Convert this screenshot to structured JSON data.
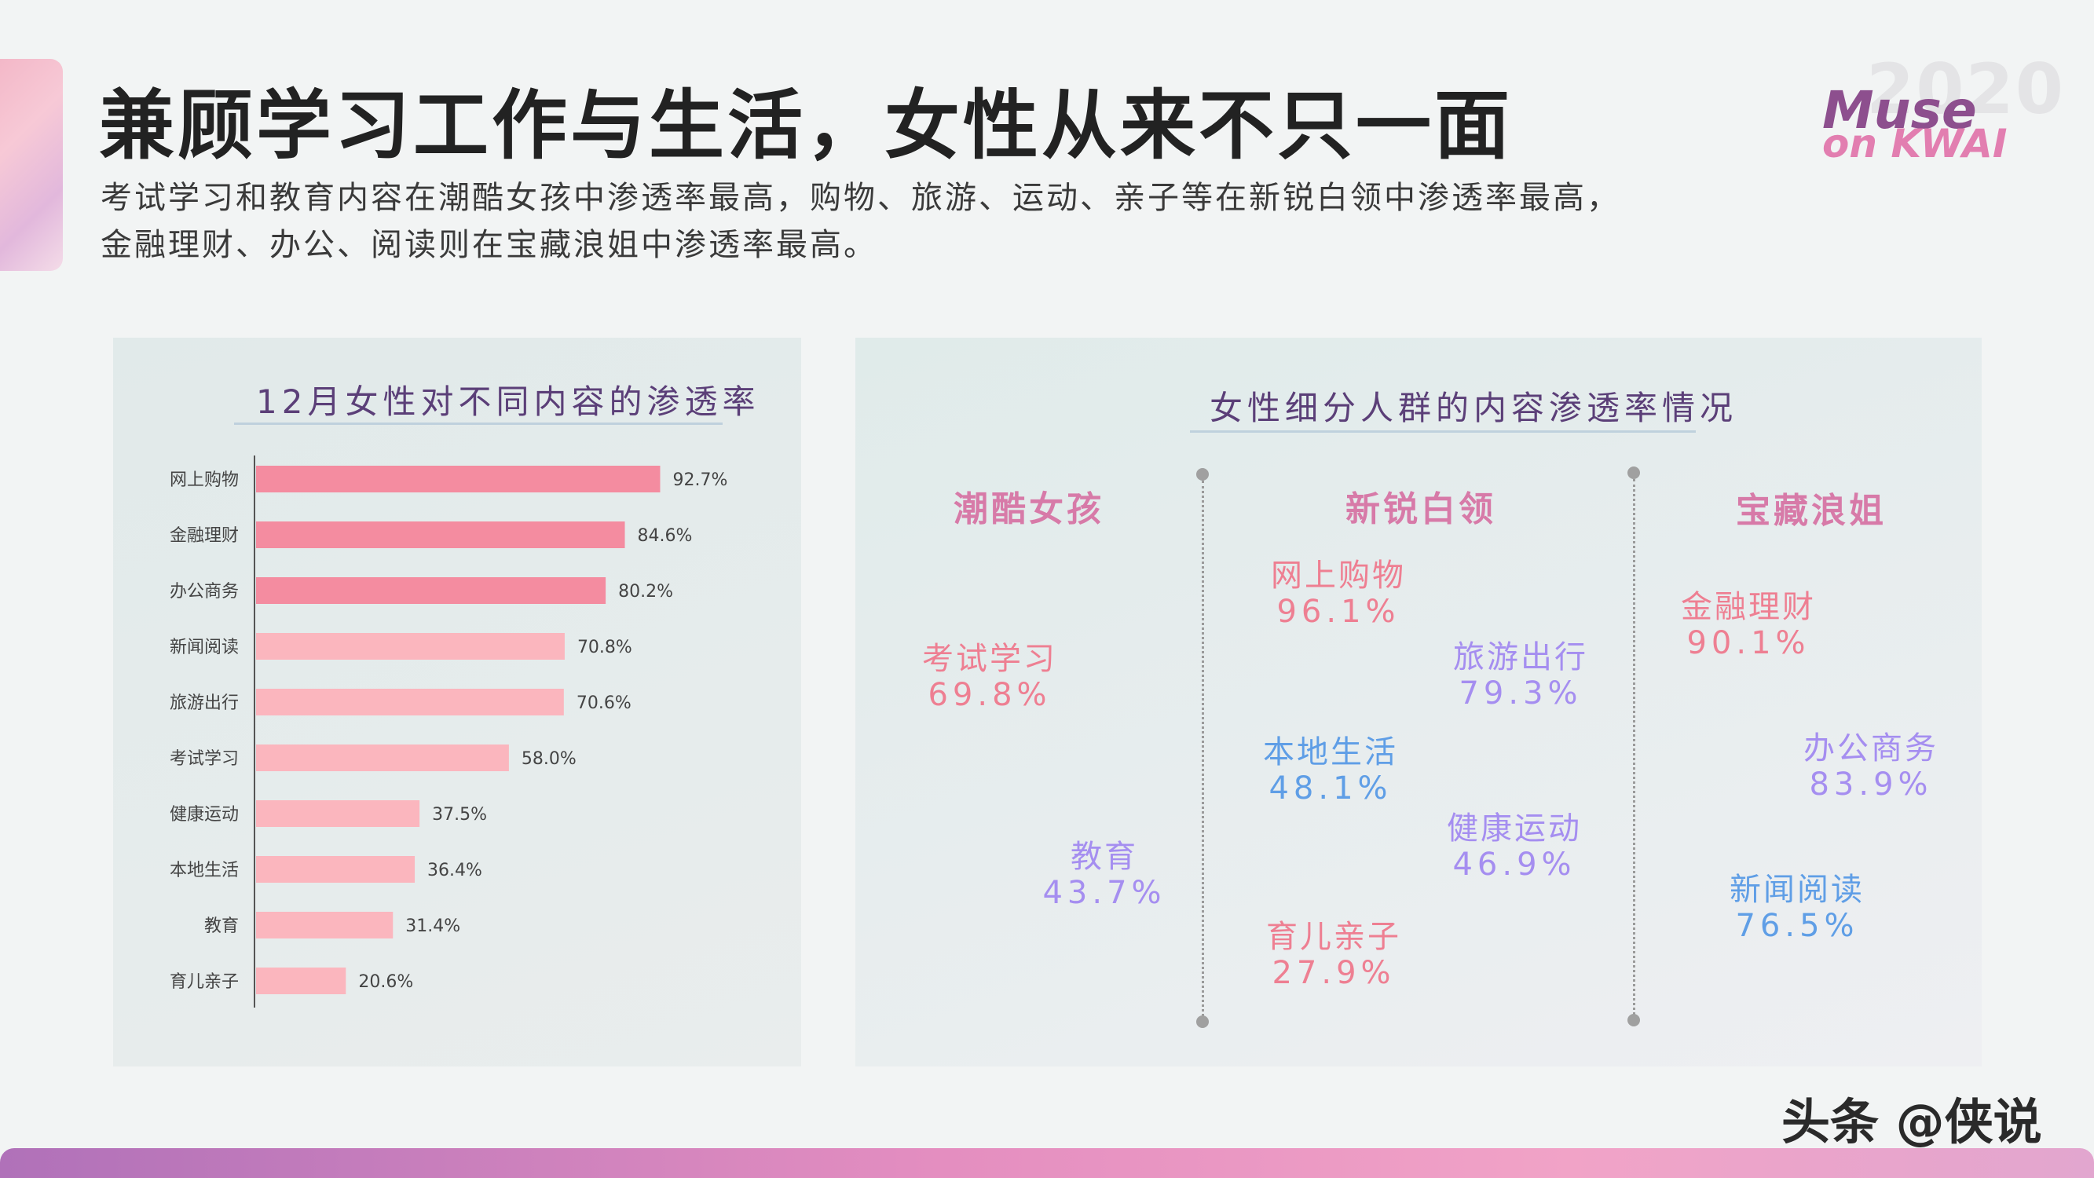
{
  "header": {
    "title": "兼顾学习工作与生活，女性从来不只一面",
    "subtitle_line1": "考试学习和教育内容在潮酷女孩中渗透率最高，购物、旅游、运动、亲子等在新锐白领中渗透率最高，",
    "subtitle_line2": "金融理财、办公、阅读则在宝藏浪姐中渗透率最高。"
  },
  "brand": {
    "year": "2020",
    "line1": "Muse",
    "line2": "on KWAI"
  },
  "watermark": "头条 @侠说",
  "colors": {
    "bar_dark": "#f48ca0",
    "bar_light": "#fbb6be",
    "pink_text": "#ee7f92",
    "blue_text": "#5f9ee6",
    "purple_text": "#a58ef0",
    "group_head": "#d77aa8"
  },
  "chart_data": [
    {
      "type": "bar",
      "orientation": "horizontal",
      "title": "12月女性对不同内容的渗透率",
      "categories": [
        "网上购物",
        "金融理财",
        "办公商务",
        "新闻阅读",
        "旅游出行",
        "考试学习",
        "健康运动",
        "本地生活",
        "教育",
        "育儿亲子"
      ],
      "values": [
        92.7,
        84.6,
        80.2,
        70.8,
        70.6,
        58.0,
        37.5,
        36.4,
        31.4,
        20.6
      ],
      "value_labels": [
        "92.7%",
        "84.6%",
        "80.2%",
        "70.8%",
        "70.6%",
        "58.0%",
        "37.5%",
        "36.4%",
        "31.4%",
        "20.6%"
      ],
      "highlight_top": 3,
      "xlim": [
        0,
        100
      ],
      "grid": false,
      "legend": "none"
    },
    {
      "type": "table",
      "title": "女性细分人群的内容渗透率情况",
      "groups": [
        {
          "name": "潮酷女孩",
          "items": [
            {
              "label": "考试学习",
              "value": "69.8%",
              "color": "pink"
            },
            {
              "label": "教育",
              "value": "43.7%",
              "color": "purple"
            }
          ]
        },
        {
          "name": "新锐白领",
          "items": [
            {
              "label": "网上购物",
              "value": "96.1%",
              "color": "pink"
            },
            {
              "label": "旅游出行",
              "value": "79.3%",
              "color": "purple"
            },
            {
              "label": "本地生活",
              "value": "48.1%",
              "color": "blue"
            },
            {
              "label": "健康运动",
              "value": "46.9%",
              "color": "purple"
            },
            {
              "label": "育儿亲子",
              "value": "27.9%",
              "color": "pink"
            }
          ]
        },
        {
          "name": "宝藏浪姐",
          "items": [
            {
              "label": "金融理财",
              "value": "90.1%",
              "color": "pink"
            },
            {
              "label": "办公商务",
              "value": "83.9%",
              "color": "purple"
            },
            {
              "label": "新闻阅读",
              "value": "76.5%",
              "color": "blue"
            }
          ]
        }
      ]
    }
  ]
}
